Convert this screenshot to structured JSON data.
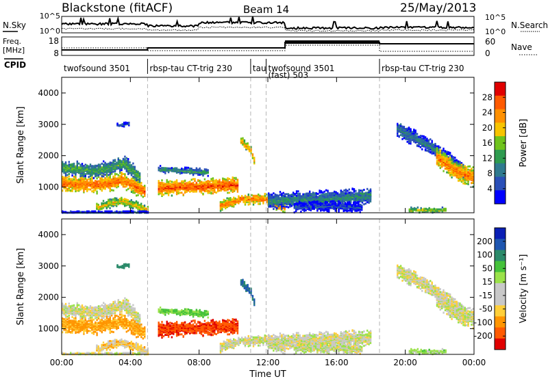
{
  "header": {
    "station": "Blackstone (fitACF)",
    "beam": "Beam 14",
    "date": "25/May/2013"
  },
  "side_labels": {
    "nsky": "N.Sky",
    "nsearch": "N.Search",
    "freq_line1": "Freq.",
    "freq_line2": "[MHz]",
    "nave": "Nave",
    "cpid": "CPID"
  },
  "noise_panel": {
    "left_ticks": [
      "10^5",
      "10^0"
    ],
    "right_ticks": [
      "10^5",
      "10^0"
    ]
  },
  "freq_panel": {
    "left_ticks": [
      "18",
      "8"
    ],
    "right_ticks": [
      "60",
      "0"
    ]
  },
  "cpid_segments": [
    {
      "label": "twofsound 3501",
      "start": 0.0,
      "end": 5.0
    },
    {
      "label": "rbsp-tau CT-trig 230",
      "start": 5.0,
      "end": 11.0
    },
    {
      "label": "tau",
      "start": 11.0,
      "end": 11.9
    },
    {
      "label": "twofsound 3501",
      "sublabel": "(fast) 503",
      "start": 11.9,
      "end": 18.5
    },
    {
      "label": "rbsp-tau CT-trig 230",
      "start": 18.5,
      "end": 24.0
    }
  ],
  "colors": {
    "power_scale": [
      "#0000ff",
      "#2a4fb8",
      "#2f7a8f",
      "#2e9b4f",
      "#6fc31c",
      "#f7c400",
      "#ff9000",
      "#ff5a00",
      "#e00000"
    ],
    "velocity_scale": [
      "#e00000",
      "#ff5a00",
      "#ff9500",
      "#ffcf3a",
      "#c8c8c8",
      "#c8c8c8",
      "#9be24a",
      "#45c23a",
      "#2b8a6a",
      "#1e56b0",
      "#0a1fb5"
    ],
    "gap_lines": "#b5b5b5"
  },
  "chart_data": [
    {
      "type": "heatmap",
      "title": "Power",
      "xlabel": "",
      "ylabel": "Slant Range [km]",
      "xlim": [
        0,
        24
      ],
      "ylim": [
        180,
        4500
      ],
      "yticks": [
        1000,
        2000,
        3000,
        4000
      ],
      "ytick_labels": [
        "1000",
        "2000",
        "3000",
        "4000"
      ],
      "colorbar": {
        "label": "Power [dB]",
        "ticks": [
          4,
          8,
          12,
          16,
          20,
          24,
          28
        ],
        "tick_labels": [
          "4",
          "8",
          "12",
          "16",
          "20",
          "24",
          "28"
        ],
        "range": [
          0,
          32
        ]
      },
      "echo_bands": [
        {
          "t": [
            0.0,
            2.0,
            3.5,
            4.8
          ],
          "r": [
            1150,
            1100,
            1250,
            900
          ],
          "halfwidth": 170,
          "value": 26
        },
        {
          "t": [
            0.0,
            2.0,
            3.6,
            4.5
          ],
          "r": [
            1650,
            1550,
            1800,
            1350
          ],
          "halfwidth": 150,
          "value": 14
        },
        {
          "t": [
            2.0,
            3.5,
            5.0
          ],
          "r": [
            400,
            600,
            300
          ],
          "halfwidth": 90,
          "value": 20
        },
        {
          "t": [
            5.6,
            8.0,
            10.2
          ],
          "r": [
            1000,
            1050,
            1100
          ],
          "halfwidth": 160,
          "value": 27
        },
        {
          "t": [
            5.6,
            7.0,
            8.5
          ],
          "r": [
            1600,
            1550,
            1500
          ],
          "halfwidth": 70,
          "value": 12
        },
        {
          "t": [
            9.2,
            10.5,
            11.8,
            13.0
          ],
          "r": [
            450,
            650,
            650,
            350
          ],
          "halfwidth": 110,
          "value": 25
        },
        {
          "t": [
            12.0,
            15.0,
            18.0
          ],
          "r": [
            600,
            650,
            750
          ],
          "halfwidth": 170,
          "value": 11
        },
        {
          "t": [
            13.5,
            15.5,
            17.5
          ],
          "r": [
            400,
            420,
            380
          ],
          "halfwidth": 110,
          "value": 6
        },
        {
          "t": [
            19.5,
            21.5,
            23.5
          ],
          "r": [
            2900,
            2300,
            1500
          ],
          "halfwidth": 170,
          "value": 10
        },
        {
          "t": [
            21.8,
            23.0,
            24.0
          ],
          "r": [
            2000,
            1500,
            1350
          ],
          "halfwidth": 200,
          "value": 25
        },
        {
          "t": [
            10.4,
            11.0,
            11.2
          ],
          "r": [
            2500,
            2200,
            1800
          ],
          "halfwidth": 90,
          "value": 22
        },
        {
          "t": [
            3.2,
            3.9
          ],
          "r": [
            3000,
            3050
          ],
          "halfwidth": 40,
          "value": 9
        },
        {
          "t": [
            0.0,
            5.0
          ],
          "r": [
            220,
            220
          ],
          "halfwidth": 40,
          "value": 6
        },
        {
          "t": [
            20.2,
            22.4
          ],
          "r": [
            300,
            300
          ],
          "halfwidth": 50,
          "value": 18
        }
      ]
    },
    {
      "type": "heatmap",
      "title": "Velocity",
      "xlabel": "Time UT",
      "ylabel": "Slant Range [km]",
      "xlim": [
        0,
        24
      ],
      "ylim": [
        180,
        4500
      ],
      "yticks": [
        1000,
        2000,
        3000,
        4000
      ],
      "ytick_labels": [
        "1000",
        "2000",
        "3000",
        "4000"
      ],
      "xticks": [
        0,
        4,
        8,
        12,
        16,
        20,
        24
      ],
      "xtick_labels": [
        "00:00",
        "04:00",
        "08:00",
        "12:00",
        "16:00",
        "20:00",
        "00:00"
      ],
      "colorbar": {
        "label": "Velocity [m s⁻¹]",
        "ticks": [
          200,
          100,
          50,
          15,
          -15,
          -50,
          -100,
          -200
        ],
        "tick_labels": [
          "200",
          "100",
          "50",
          "15",
          "-15",
          "-50",
          "-100",
          "-200"
        ],
        "range": [
          -250,
          250
        ]
      },
      "echo_bands": [
        {
          "t": [
            0.0,
            2.0,
            3.5,
            4.8
          ],
          "r": [
            1150,
            1100,
            1250,
            900
          ],
          "halfwidth": 170,
          "value": -60
        },
        {
          "t": [
            0.0,
            2.0,
            3.6,
            4.5
          ],
          "r": [
            1650,
            1550,
            1800,
            1350
          ],
          "halfwidth": 150,
          "value": 0
        },
        {
          "t": [
            2.0,
            3.5,
            5.0
          ],
          "r": [
            400,
            600,
            300
          ],
          "halfwidth": 90,
          "value": -30
        },
        {
          "t": [
            5.6,
            8.0,
            10.2
          ],
          "r": [
            1000,
            1050,
            1100
          ],
          "halfwidth": 160,
          "value": -190
        },
        {
          "t": [
            5.6,
            7.0,
            8.5
          ],
          "r": [
            1600,
            1550,
            1500
          ],
          "halfwidth": 70,
          "value": 60
        },
        {
          "t": [
            9.2,
            10.5,
            11.8,
            13.0
          ],
          "r": [
            450,
            650,
            650,
            350
          ],
          "halfwidth": 110,
          "value": 0
        },
        {
          "t": [
            12.0,
            15.0,
            18.0
          ],
          "r": [
            600,
            650,
            750
          ],
          "halfwidth": 170,
          "value": 0
        },
        {
          "t": [
            13.5,
            15.5,
            17.5
          ],
          "r": [
            400,
            420,
            380
          ],
          "halfwidth": 110,
          "value": 5
        },
        {
          "t": [
            19.5,
            21.5,
            23.5
          ],
          "r": [
            2900,
            2300,
            1500
          ],
          "halfwidth": 170,
          "value": 0
        },
        {
          "t": [
            21.8,
            23.0,
            24.0
          ],
          "r": [
            2000,
            1500,
            1350
          ],
          "halfwidth": 200,
          "value": 0
        },
        {
          "t": [
            10.4,
            11.0,
            11.2
          ],
          "r": [
            2500,
            2200,
            1800
          ],
          "halfwidth": 90,
          "value": 200
        },
        {
          "t": [
            3.2,
            3.9
          ],
          "r": [
            3000,
            3050
          ],
          "halfwidth": 40,
          "value": 150
        },
        {
          "t": [
            0.0,
            5.0
          ],
          "r": [
            220,
            220
          ],
          "halfwidth": 40,
          "value": 0
        },
        {
          "t": [
            20.2,
            22.4
          ],
          "r": [
            300,
            300
          ],
          "halfwidth": 50,
          "value": 30
        }
      ]
    }
  ]
}
